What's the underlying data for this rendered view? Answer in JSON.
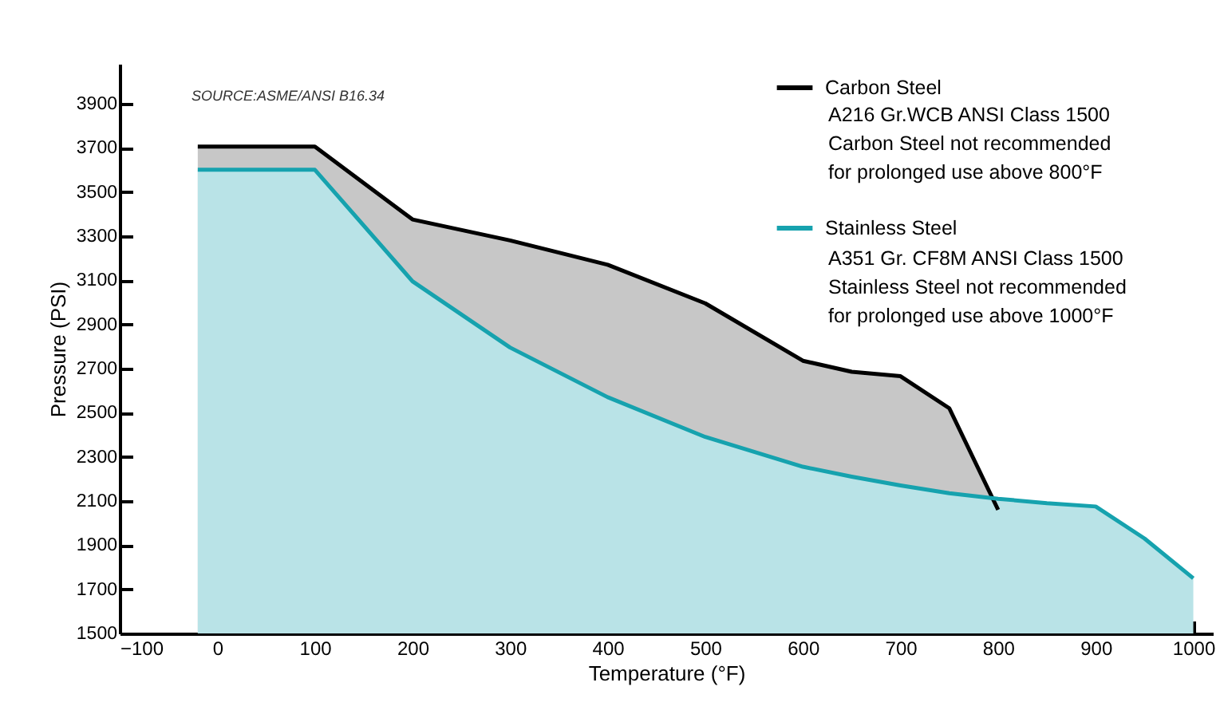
{
  "chart_data": {
    "type": "area",
    "xlabel": "Temperature (°F)",
    "ylabel": "Pressure (PSI)",
    "annotations": [
      "SOURCE:ASME/ANSI B16.34",
      "A216 Gr.WCB ANSI Class 1500\nCarbon Steel not recommended\nfor prolonged use above 800°F",
      "A351 Gr. CF8M ANSI Class 1500\nStainless Steel not recommended\nfor prolonged use above 1000°F"
    ],
    "series": [
      {
        "name": "Carbon Steel",
        "color": "#000000",
        "x": [
          -20,
          100,
          200,
          300,
          400,
          500,
          600,
          650,
          700,
          750,
          800
        ],
        "values": [
          3705,
          3705,
          3375,
          3280,
          3170,
          2995,
          2735,
          2685,
          2665,
          2520,
          2060
        ]
      },
      {
        "name": "Stainless Steel",
        "color": "#16a2ae",
        "x": [
          -20,
          100,
          200,
          300,
          400,
          500,
          600,
          650,
          700,
          750,
          800,
          850,
          900,
          950,
          1000
        ],
        "values": [
          3600,
          3600,
          3095,
          2795,
          2570,
          2390,
          2255,
          2210,
          2170,
          2135,
          2110,
          2090,
          2075,
          1930,
          1750
        ]
      }
    ],
    "xlim": [
      -100,
      1020
    ],
    "xticks": [
      -100,
      0,
      100,
      200,
      300,
      400,
      500,
      600,
      700,
      800,
      900,
      1000
    ],
    "ylim": [
      1500,
      4080
    ],
    "yticks": [
      1500,
      1700,
      1900,
      2100,
      2300,
      2500,
      2700,
      2900,
      3100,
      3300,
      3500,
      3700,
      3900
    ],
    "grid": false,
    "legend": "top right",
    "marker": "none",
    "line_style": "solid"
  }
}
